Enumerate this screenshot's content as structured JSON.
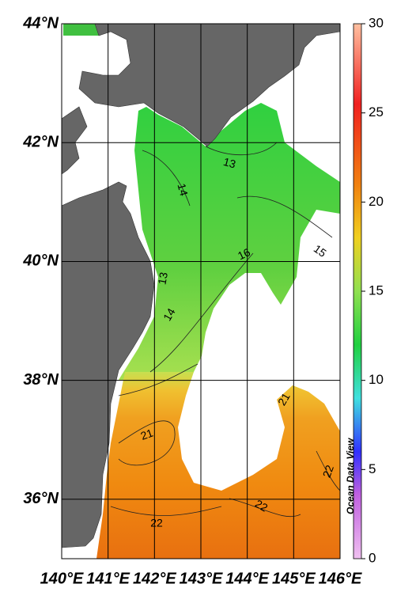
{
  "map": {
    "lat_ticks": [
      {
        "value": 44,
        "label": "44°N"
      },
      {
        "value": 42,
        "label": "42°N"
      },
      {
        "value": 40,
        "label": "40°N"
      },
      {
        "value": 38,
        "label": "38°N"
      },
      {
        "value": 36,
        "label": "36°N"
      }
    ],
    "lon_ticks": [
      {
        "value": 140,
        "label": "140°E"
      },
      {
        "value": 141,
        "label": "141°E"
      },
      {
        "value": 142,
        "label": "142°E"
      },
      {
        "value": 143,
        "label": "143°E"
      },
      {
        "value": 144,
        "label": "144°E"
      },
      {
        "value": 145,
        "label": "145°E"
      },
      {
        "value": 146,
        "label": "146°E"
      }
    ],
    "lat_range": [
      35,
      44
    ],
    "lon_range": [
      140,
      146
    ],
    "colorbar": {
      "range": [
        0,
        30
      ],
      "ticks": [
        0,
        5,
        10,
        15,
        20,
        25,
        30
      ]
    },
    "contour_labels": [
      "13",
      "14",
      "13",
      "16",
      "15",
      "14",
      "21",
      "22",
      "22",
      "22",
      "21"
    ],
    "watermark": "Ocean Data View"
  }
}
